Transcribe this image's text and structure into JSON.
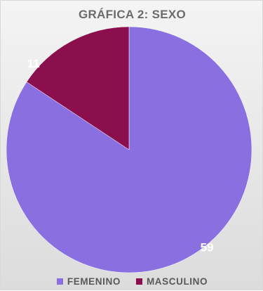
{
  "chart_data": {
    "type": "pie",
    "title": "GRÁFICA 2: SEXO",
    "categories": [
      "FEMENINO",
      "MASCULINO"
    ],
    "values": [
      59,
      11
    ],
    "colors": [
      "#8a6fe0",
      "#8c0f4d"
    ],
    "data_labels": [
      "59",
      "11"
    ],
    "start_angle_deg": 0,
    "direction": "clockwise",
    "legend_position": "bottom"
  },
  "colors": {
    "background": "#ececec",
    "title_text": "#6b6b6b",
    "label_text": "#ffffff",
    "legend_text": "#595959"
  }
}
